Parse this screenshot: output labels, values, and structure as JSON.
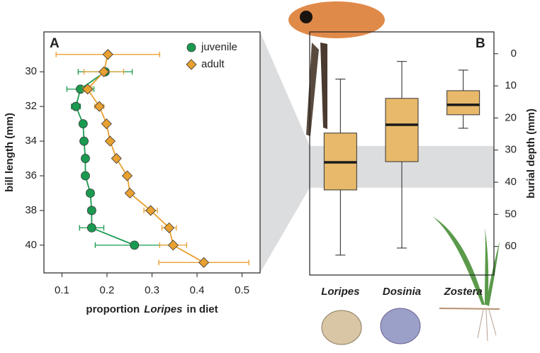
{
  "chart_data": [
    {
      "type": "line",
      "panel_label": "A",
      "ylabel": "bill length (mm)",
      "xlabel": [
        "proportion",
        "Loripes",
        "in diet"
      ],
      "y": [
        29,
        30,
        31,
        32,
        33,
        34,
        35,
        36,
        37,
        38,
        39,
        40,
        41
      ],
      "series": [
        {
          "name": "juvenile",
          "color": "#1a9a50",
          "marker": "circle",
          "values": [
            null,
            0.196,
            0.141,
            0.131,
            0.147,
            0.149,
            0.152,
            0.152,
            0.163,
            0.166,
            0.166,
            0.261,
            null
          ],
          "xerr": [
            null,
            0.06,
            0.03,
            0.01,
            0.005,
            0.005,
            0.005,
            0.005,
            0.008,
            0.008,
            0.027,
            0.087,
            null
          ]
        },
        {
          "name": "adult",
          "color": "#e8a030",
          "marker": "diamond",
          "values": [
            0.202,
            0.193,
            0.157,
            0.183,
            0.199,
            0.207,
            0.221,
            0.245,
            0.251,
            0.297,
            0.338,
            0.347,
            0.415
          ],
          "xerr": [
            0.115,
            0.044,
            0.01,
            0.01,
            0.005,
            0.005,
            0.005,
            0.005,
            0.005,
            0.015,
            0.016,
            0.03,
            0.1
          ]
        }
      ],
      "xlim": [
        0.06,
        0.54
      ],
      "xticks": [
        0.1,
        0.2,
        0.3,
        0.4,
        0.5
      ],
      "ylim": [
        27.7,
        41.6
      ],
      "y_reversed": true,
      "yticks": [
        30,
        32,
        34,
        36,
        38,
        40
      ],
      "legend": "top-right"
    },
    {
      "type": "box",
      "panel_label": "B",
      "ylabel": "burial depth (mm)",
      "categories": [
        "Loripes",
        "Dosinia",
        "Zostera"
      ],
      "color": "#e8b96a",
      "boxes": [
        {
          "min": 7.9,
          "q1": 24.7,
          "median": 33.8,
          "q3": 42.4,
          "max": 62.7
        },
        {
          "min": 2.4,
          "q1": 13.9,
          "median": 22.1,
          "q3": 33.6,
          "max": 60.5
        },
        {
          "min": 5.1,
          "q1": 11.5,
          "median": 15.9,
          "q3": 19.0,
          "max": 23.2
        }
      ],
      "band": [
        28.7,
        41.7
      ],
      "band_color": "#dcdddf",
      "ylim": [
        -6.8,
        68.9
      ],
      "y_reversed": true,
      "yticks": [
        0,
        10,
        20,
        30,
        40,
        50,
        60
      ],
      "y_side": "right"
    }
  ]
}
